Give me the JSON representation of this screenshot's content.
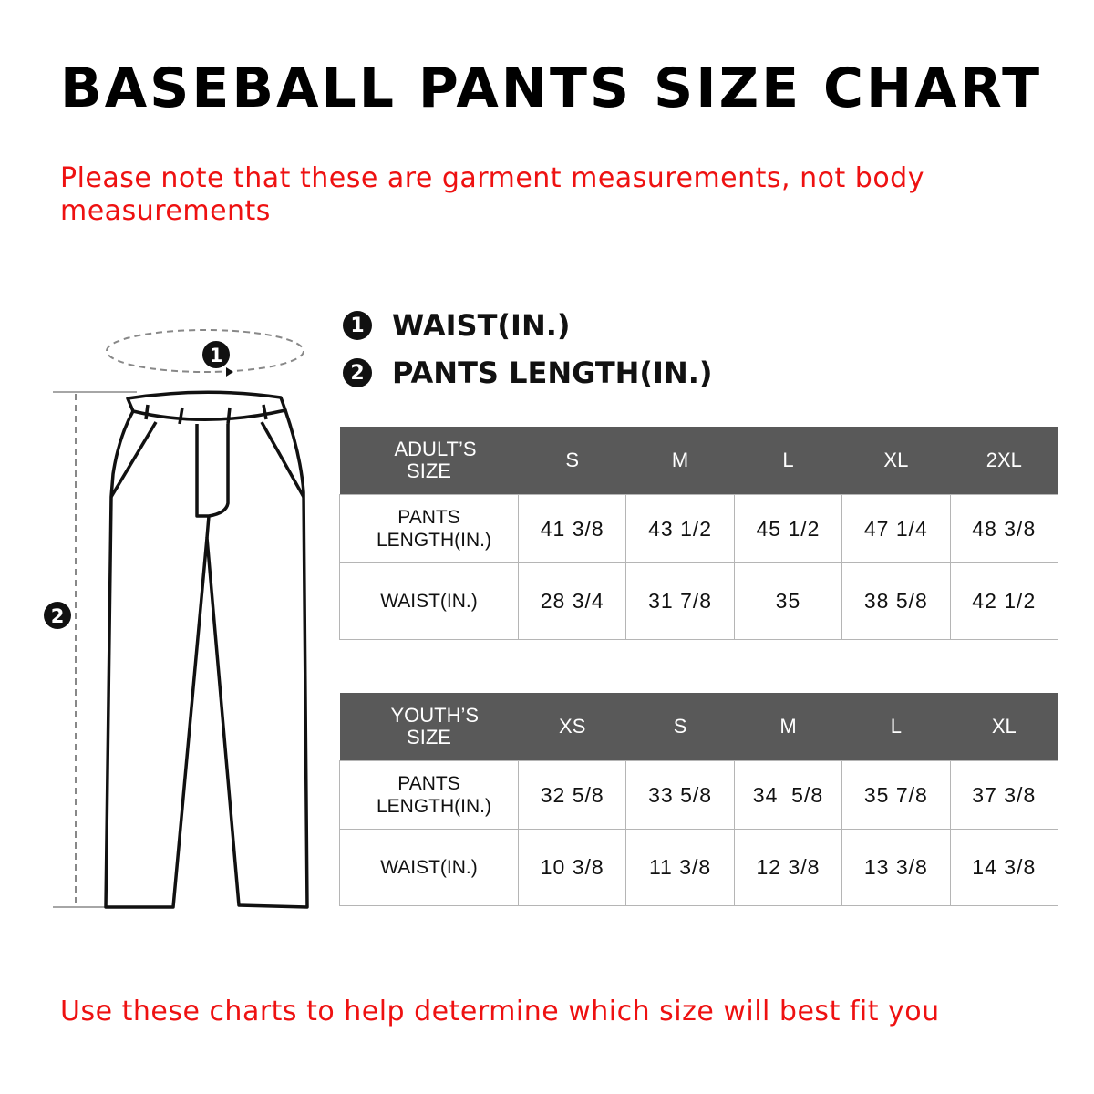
{
  "title": "BASEBALL PANTS SIZE CHART",
  "note": "Please note that these are garment measurements, not body measurements",
  "legend": [
    {
      "number": "1",
      "label": "WAIST(IN.)"
    },
    {
      "number": "2",
      "label": "PANTS LENGTH(IN.)"
    }
  ],
  "diagram": {
    "waist_marker": "1",
    "length_marker": "2"
  },
  "adult_table": {
    "header": [
      "ADULT’S SIZE",
      "S",
      "M",
      "L",
      "XL",
      "2XL"
    ],
    "rows": [
      [
        "PANTS LENGTH(IN.)",
        "41 3/8",
        "43 1/2",
        "45 1/2",
        "47 1/4",
        "48 3/8"
      ],
      [
        "WAIST(IN.)",
        "28 3/4",
        "31 7/8",
        "35",
        "38 5/8",
        "42 1/2"
      ]
    ]
  },
  "youth_table": {
    "header": [
      "YOUTH’S SIZE",
      "XS",
      "S",
      "M",
      "L",
      "XL"
    ],
    "rows": [
      [
        "PANTS LENGTH(IN.)",
        "32 5/8",
        "33 5/8",
        "34  5/8",
        "35 7/8",
        "37 3/8"
      ],
      [
        "WAIST(IN.)",
        "10 3/8",
        "11 3/8",
        "12 3/8",
        "13 3/8",
        "14 3/8"
      ]
    ]
  },
  "bottom_note": "Use these charts to help determine which size will best fit you",
  "colors": {
    "accent_red": "#ee1111",
    "header_gray": "#595959",
    "border": "#b5b5b5"
  }
}
